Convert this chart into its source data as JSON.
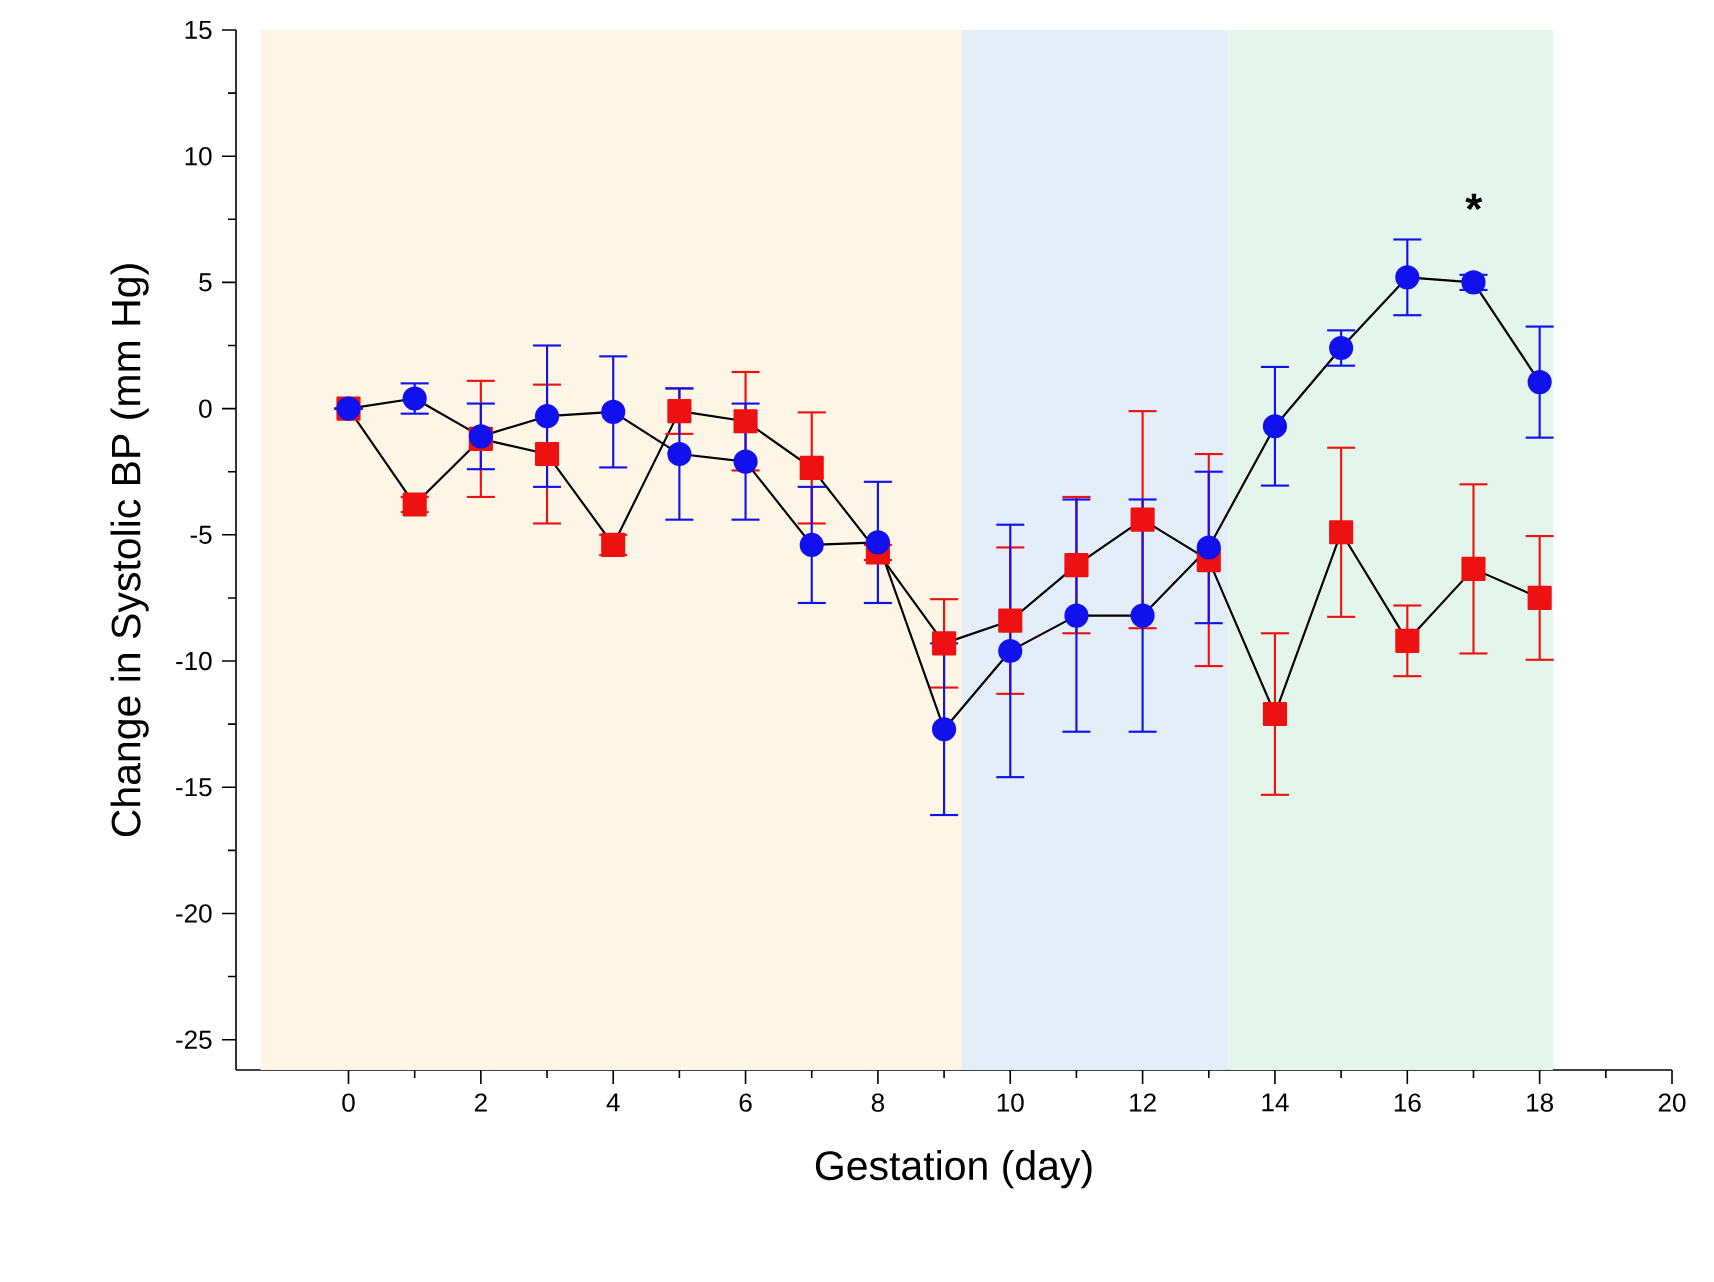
{
  "chart_data": {
    "type": "line",
    "xlabel": "Gestation (day)",
    "ylabel": "Change in Systolic BP (mm Hg)",
    "x": [
      0,
      1,
      2,
      3,
      4,
      5,
      6,
      7,
      8,
      9,
      10,
      11,
      12,
      13,
      14,
      15,
      16,
      17,
      18
    ],
    "series": [
      {
        "color": "#ee1111",
        "marker": "square",
        "values": [
          0,
          -3.8,
          -1.2,
          -1.8,
          -5.4,
          -0.1,
          -0.5,
          -2.35,
          -5.7,
          -9.3,
          -8.4,
          -6.2,
          -4.4,
          -6.0,
          -12.1,
          -4.9,
          -9.2,
          -6.35,
          -7.5
        ],
        "errors": [
          null,
          0.3,
          2.3,
          2.75,
          0.4,
          0.9,
          1.95,
          2.2,
          0.3,
          1.75,
          2.9,
          2.7,
          4.3,
          4.2,
          3.2,
          3.35,
          1.4,
          3.35,
          2.45
        ]
      },
      {
        "color": "#1111ee",
        "marker": "circle",
        "values": [
          0,
          0.4,
          -1.1,
          -0.3,
          -0.13,
          -1.8,
          -2.1,
          -5.4,
          -5.3,
          -12.7,
          -9.6,
          -8.2,
          -8.2,
          -5.5,
          -0.7,
          2.4,
          5.2,
          5.0,
          1.05
        ],
        "errors": [
          null,
          0.6,
          1.3,
          2.8,
          2.2,
          2.6,
          2.3,
          2.3,
          2.4,
          3.4,
          5.0,
          4.6,
          4.6,
          3.0,
          2.35,
          0.7,
          1.5,
          0.3,
          2.2
        ]
      }
    ],
    "bands": [
      {
        "axis": "x",
        "from": -1.33,
        "to": 9.27,
        "color": "#fdf5e6"
      },
      {
        "axis": "x",
        "from": 9.27,
        "to": 13.3,
        "color": "#e4eef8"
      },
      {
        "axis": "x",
        "from": 13.3,
        "to": 18.2,
        "color": "#e4f5eb"
      }
    ],
    "annotations": [
      "*"
    ],
    "xlim": [
      -1.7,
      20
    ],
    "ylim": [
      -26.2,
      15
    ],
    "xticks": [
      0,
      2,
      4,
      6,
      8,
      10,
      12,
      14,
      16,
      18,
      20
    ],
    "yticks": [
      -25,
      -20,
      -15,
      -10,
      -5,
      0,
      5,
      10,
      15
    ],
    "grid": false,
    "line_style": "solid"
  }
}
